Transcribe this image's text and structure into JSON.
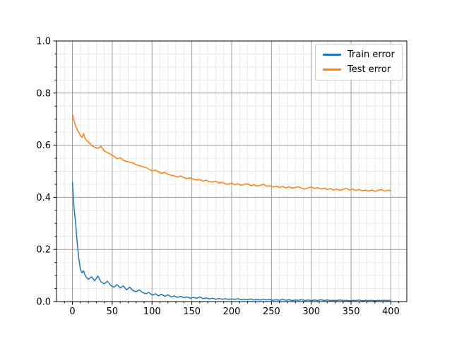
{
  "figure": {
    "background": "#ffffff"
  },
  "chart_data": {
    "type": "line",
    "title": "",
    "xlabel": "",
    "ylabel": "",
    "xlim": [
      -20,
      420
    ],
    "ylim": [
      0,
      1.0
    ],
    "grid": {
      "major_color": "#9b9b9b",
      "minor_color": "#e7e7e7",
      "on": true,
      "which": "both"
    },
    "x_major_ticks": [
      0,
      50,
      100,
      150,
      200,
      250,
      300,
      350,
      400
    ],
    "x_tick_labels": [
      "0",
      "50",
      "100",
      "150",
      "200",
      "250",
      "300",
      "350",
      "400"
    ],
    "x_minor_step": 10,
    "y_major_ticks": [
      0.0,
      0.2,
      0.4,
      0.6,
      0.8,
      1.0
    ],
    "y_tick_labels": [
      "0.0",
      "0.2",
      "0.4",
      "0.6",
      "0.8",
      "1.0"
    ],
    "y_minor_step": 0.05,
    "legend": {
      "position": "upper right",
      "entries": [
        {
          "label": "Train error",
          "color": "#1f77b4"
        },
        {
          "label": "Test error",
          "color": "#ff7f0e"
        }
      ]
    },
    "x": [
      0,
      2,
      4,
      6,
      8,
      10,
      12,
      14,
      16,
      18,
      20,
      24,
      28,
      32,
      36,
      40,
      44,
      48,
      52,
      56,
      60,
      64,
      68,
      72,
      76,
      80,
      84,
      88,
      92,
      96,
      100,
      104,
      108,
      112,
      116,
      120,
      124,
      128,
      132,
      136,
      140,
      144,
      148,
      152,
      156,
      160,
      164,
      168,
      172,
      176,
      180,
      184,
      188,
      192,
      196,
      200,
      204,
      208,
      212,
      216,
      220,
      224,
      228,
      232,
      236,
      240,
      244,
      248,
      252,
      256,
      260,
      264,
      268,
      272,
      276,
      280,
      284,
      288,
      292,
      296,
      300,
      304,
      308,
      312,
      316,
      320,
      324,
      328,
      332,
      336,
      340,
      344,
      348,
      352,
      356,
      360,
      364,
      368,
      372,
      376,
      380,
      384,
      388,
      392,
      396,
      400
    ],
    "series": [
      {
        "name": "Train error",
        "color": "#1f77b4",
        "values": [
          0.46,
          0.36,
          0.3,
          0.225,
          0.165,
          0.125,
          0.11,
          0.118,
          0.1,
          0.092,
          0.085,
          0.095,
          0.08,
          0.098,
          0.075,
          0.068,
          0.078,
          0.062,
          0.055,
          0.065,
          0.052,
          0.06,
          0.045,
          0.055,
          0.042,
          0.038,
          0.045,
          0.035,
          0.03,
          0.035,
          0.025,
          0.03,
          0.022,
          0.028,
          0.02,
          0.026,
          0.018,
          0.022,
          0.016,
          0.02,
          0.015,
          0.018,
          0.013,
          0.016,
          0.012,
          0.018,
          0.011,
          0.014,
          0.01,
          0.013,
          0.009,
          0.012,
          0.009,
          0.011,
          0.008,
          0.01,
          0.008,
          0.011,
          0.007,
          0.009,
          0.007,
          0.01,
          0.006,
          0.008,
          0.006,
          0.009,
          0.006,
          0.008,
          0.005,
          0.007,
          0.005,
          0.008,
          0.005,
          0.007,
          0.004,
          0.006,
          0.005,
          0.007,
          0.004,
          0.006,
          0.004,
          0.006,
          0.004,
          0.007,
          0.004,
          0.006,
          0.004,
          0.005,
          0.004,
          0.006,
          0.004,
          0.005,
          0.003,
          0.005,
          0.004,
          0.006,
          0.003,
          0.005,
          0.004,
          0.005,
          0.003,
          0.005,
          0.004,
          0.005,
          0.004,
          0.005
        ]
      },
      {
        "name": "Test error",
        "color": "#ff7f0e",
        "values": [
          0.72,
          0.695,
          0.672,
          0.66,
          0.648,
          0.638,
          0.63,
          0.645,
          0.625,
          0.618,
          0.612,
          0.6,
          0.592,
          0.588,
          0.596,
          0.578,
          0.572,
          0.565,
          0.558,
          0.548,
          0.552,
          0.542,
          0.538,
          0.535,
          0.532,
          0.525,
          0.522,
          0.518,
          0.515,
          0.508,
          0.502,
          0.505,
          0.498,
          0.492,
          0.496,
          0.488,
          0.485,
          0.482,
          0.478,
          0.482,
          0.476,
          0.472,
          0.475,
          0.47,
          0.467,
          0.468,
          0.462,
          0.466,
          0.46,
          0.458,
          0.462,
          0.455,
          0.458,
          0.452,
          0.45,
          0.455,
          0.448,
          0.452,
          0.446,
          0.45,
          0.452,
          0.445,
          0.448,
          0.443,
          0.446,
          0.45,
          0.442,
          0.445,
          0.44,
          0.443,
          0.438,
          0.442,
          0.436,
          0.44,
          0.435,
          0.438,
          0.441,
          0.435,
          0.432,
          0.436,
          0.44,
          0.434,
          0.437,
          0.432,
          0.435,
          0.43,
          0.434,
          0.428,
          0.432,
          0.427,
          0.431,
          0.435,
          0.428,
          0.432,
          0.426,
          0.43,
          0.425,
          0.428,
          0.424,
          0.428,
          0.423,
          0.427,
          0.43,
          0.424,
          0.427,
          0.425
        ]
      }
    ]
  }
}
